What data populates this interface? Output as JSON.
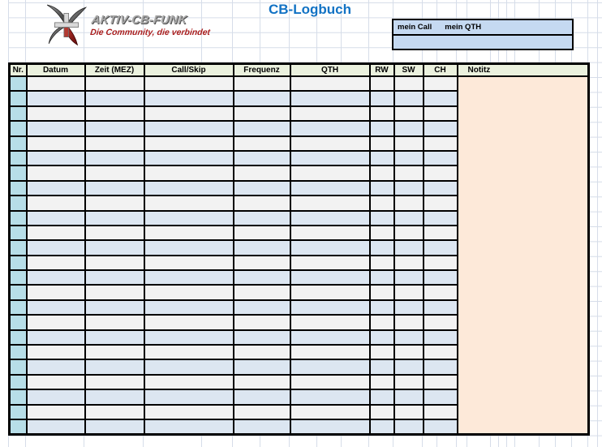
{
  "title": "CB-Logbuch",
  "logo": {
    "line1": "AKTIV-CB-FUNK",
    "line2": "Die Community, die verbindet"
  },
  "station_box": {
    "call_label": "mein Call",
    "qth_label": "mein QTH",
    "call_value": "",
    "qth_value": ""
  },
  "table": {
    "columns": [
      {
        "key": "nr",
        "label": "Nr."
      },
      {
        "key": "datum",
        "label": "Datum"
      },
      {
        "key": "zeit",
        "label": "Zeit (MEZ)"
      },
      {
        "key": "callskip",
        "label": "Call/Skip"
      },
      {
        "key": "frequenz",
        "label": "Frequenz"
      },
      {
        "key": "qth",
        "label": "QTH"
      },
      {
        "key": "rw",
        "label": "RW"
      },
      {
        "key": "sw",
        "label": "SW"
      },
      {
        "key": "ch",
        "label": "CH"
      },
      {
        "key": "notitz",
        "label": "Notitz"
      }
    ],
    "row_count": 24,
    "rows_are_empty": true
  },
  "colors": {
    "title_color": "#1172c4",
    "header_bg": "#ebf1de",
    "row_odd": "#f2f2f2",
    "row_even": "#dce6f1",
    "nr_col": "#b7dee8",
    "notes_bg": "#fde9d9",
    "box_bg": "#c5d9f1",
    "logo_red": "#a91d1d",
    "gridline": "#d6dde9",
    "border": "#000000"
  }
}
